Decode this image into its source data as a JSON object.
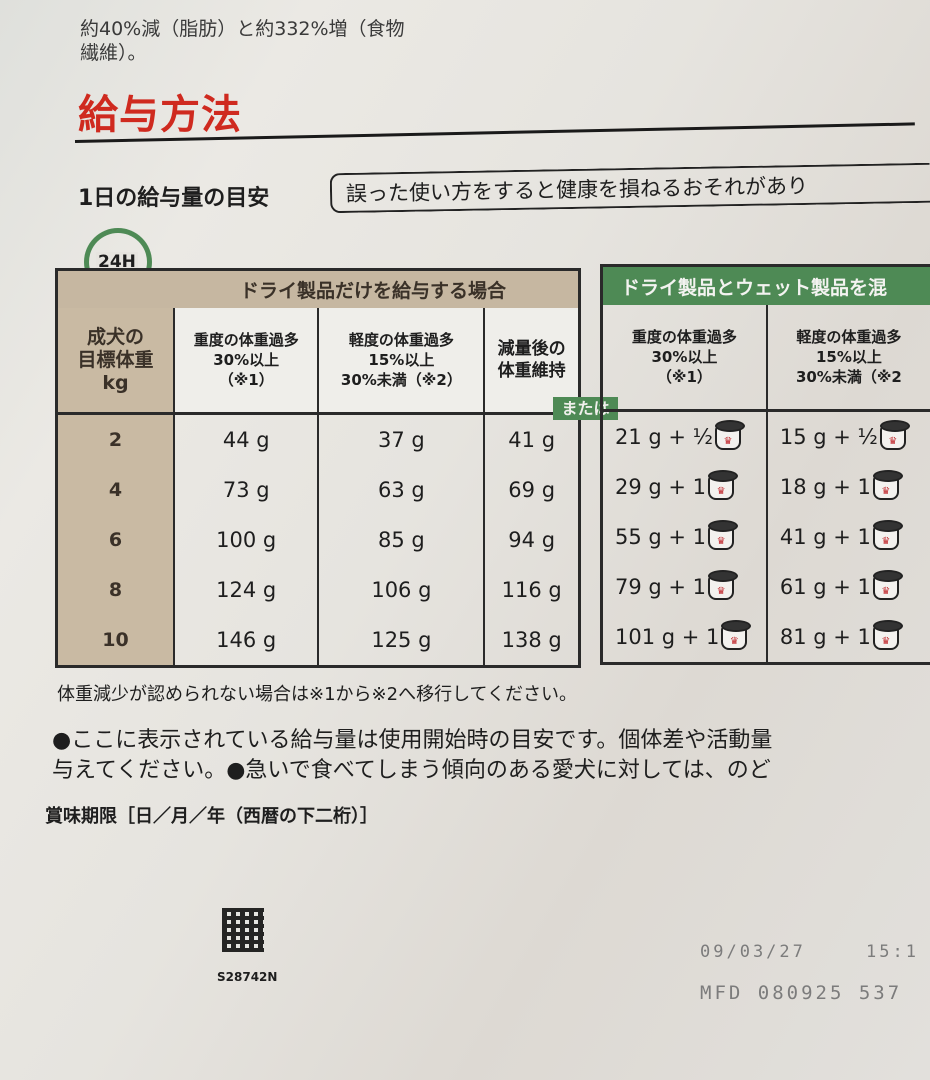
{
  "intro": {
    "line1": "約40%減（脂肪）と約332%増（食物",
    "line2": "繊維）。"
  },
  "section_title": "給与方法",
  "subtitle": "1日の給与量の目安",
  "warning": "誤った使い方をすると健康を損ねるおそれがあり",
  "clock_label": "24H",
  "dry_table": {
    "band": "ドライ製品だけを給与する場合",
    "weight_header": [
      "成犬の",
      "目標体重",
      "kg"
    ],
    "col_headers": [
      [
        "重度の体重過多",
        "30%以上",
        "（※1）"
      ],
      [
        "軽度の体重過多",
        "15%以上",
        "30%未満（※2）"
      ],
      [
        "減量後の",
        "体重維持",
        ""
      ]
    ],
    "rows": [
      {
        "kg": "2",
        "v": [
          "44 g",
          "37 g",
          "41 g"
        ]
      },
      {
        "kg": "4",
        "v": [
          "73 g",
          "63 g",
          "69 g"
        ]
      },
      {
        "kg": "6",
        "v": [
          "100 g",
          "85 g",
          "94 g"
        ]
      },
      {
        "kg": "8",
        "v": [
          "124 g",
          "106 g",
          "116 g"
        ]
      },
      {
        "kg": "10",
        "v": [
          "146 g",
          "125 g",
          "138 g"
        ]
      }
    ]
  },
  "or_label": "または",
  "mixed_table": {
    "band": "ドライ製品とウェット製品を混",
    "col_headers": [
      [
        "重度の体重過多",
        "30%以上",
        "（※1）"
      ],
      [
        "軽度の体重過多",
        "15%以上",
        "30%未満（※2"
      ]
    ],
    "rows": [
      [
        "21 g + ½",
        "15 g + ½"
      ],
      [
        "29 g + 1",
        "18 g + 1"
      ],
      [
        "55 g + 1",
        "41 g + 1"
      ],
      [
        "79 g + 1",
        "61 g + 1"
      ],
      [
        "101 g + 1",
        "81 g + 1"
      ]
    ],
    "can_icon": "wet-food-can-icon"
  },
  "note": "体重減少が認められない場合は※1から※2へ移行してください。",
  "bullet1": "●ここに表示されている給与量は使用開始時の目安です。個体差や活動量",
  "bullet2": "与えてください。●急いで食べてしまう傾向のある愛犬に対しては、のど",
  "expiry_label": "賞味期限［日／月／年（西暦の下二桁）］",
  "product_code": "S28742N",
  "date_stamp": "09/03/27",
  "time_stamp": "15:1",
  "mfd_stamp": "MFD 080925 537",
  "colors": {
    "title_red": "#cf2a1f",
    "green": "#4e8a55",
    "tan": "#c6b7a1"
  }
}
